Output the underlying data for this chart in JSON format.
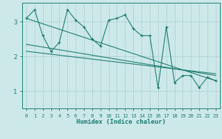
{
  "bg_color": "#cce8e8",
  "line_color": "#1a7a6e",
  "grid_color": "#aacece",
  "xlabel": "Humidex (Indice chaleur)",
  "ylim": [
    0.5,
    3.55
  ],
  "xlim": [
    -0.5,
    23.5
  ],
  "yticks": [
    1,
    2,
    3
  ],
  "xticks": [
    0,
    1,
    2,
    3,
    4,
    5,
    6,
    7,
    8,
    9,
    10,
    11,
    12,
    13,
    14,
    15,
    16,
    17,
    18,
    19,
    20,
    21,
    22,
    23
  ],
  "line1_x": [
    0,
    1,
    2,
    3,
    4,
    5,
    6,
    7,
    8,
    9,
    10,
    11,
    12,
    13,
    14,
    15,
    16,
    17,
    18,
    19,
    20,
    21,
    22,
    23
  ],
  "line1_y": [
    3.1,
    3.35,
    2.6,
    2.15,
    2.4,
    3.35,
    3.05,
    2.85,
    2.5,
    2.3,
    3.05,
    3.1,
    3.2,
    2.8,
    2.6,
    2.6,
    1.1,
    2.85,
    1.25,
    1.45,
    1.45,
    1.1,
    1.4,
    1.3
  ],
  "line2_x": [
    0,
    23
  ],
  "line2_y": [
    3.1,
    1.3
  ],
  "line3_x": [
    0,
    23
  ],
  "line3_y": [
    2.35,
    1.45
  ],
  "line4_x": [
    0,
    23
  ],
  "line4_y": [
    2.15,
    1.5
  ]
}
